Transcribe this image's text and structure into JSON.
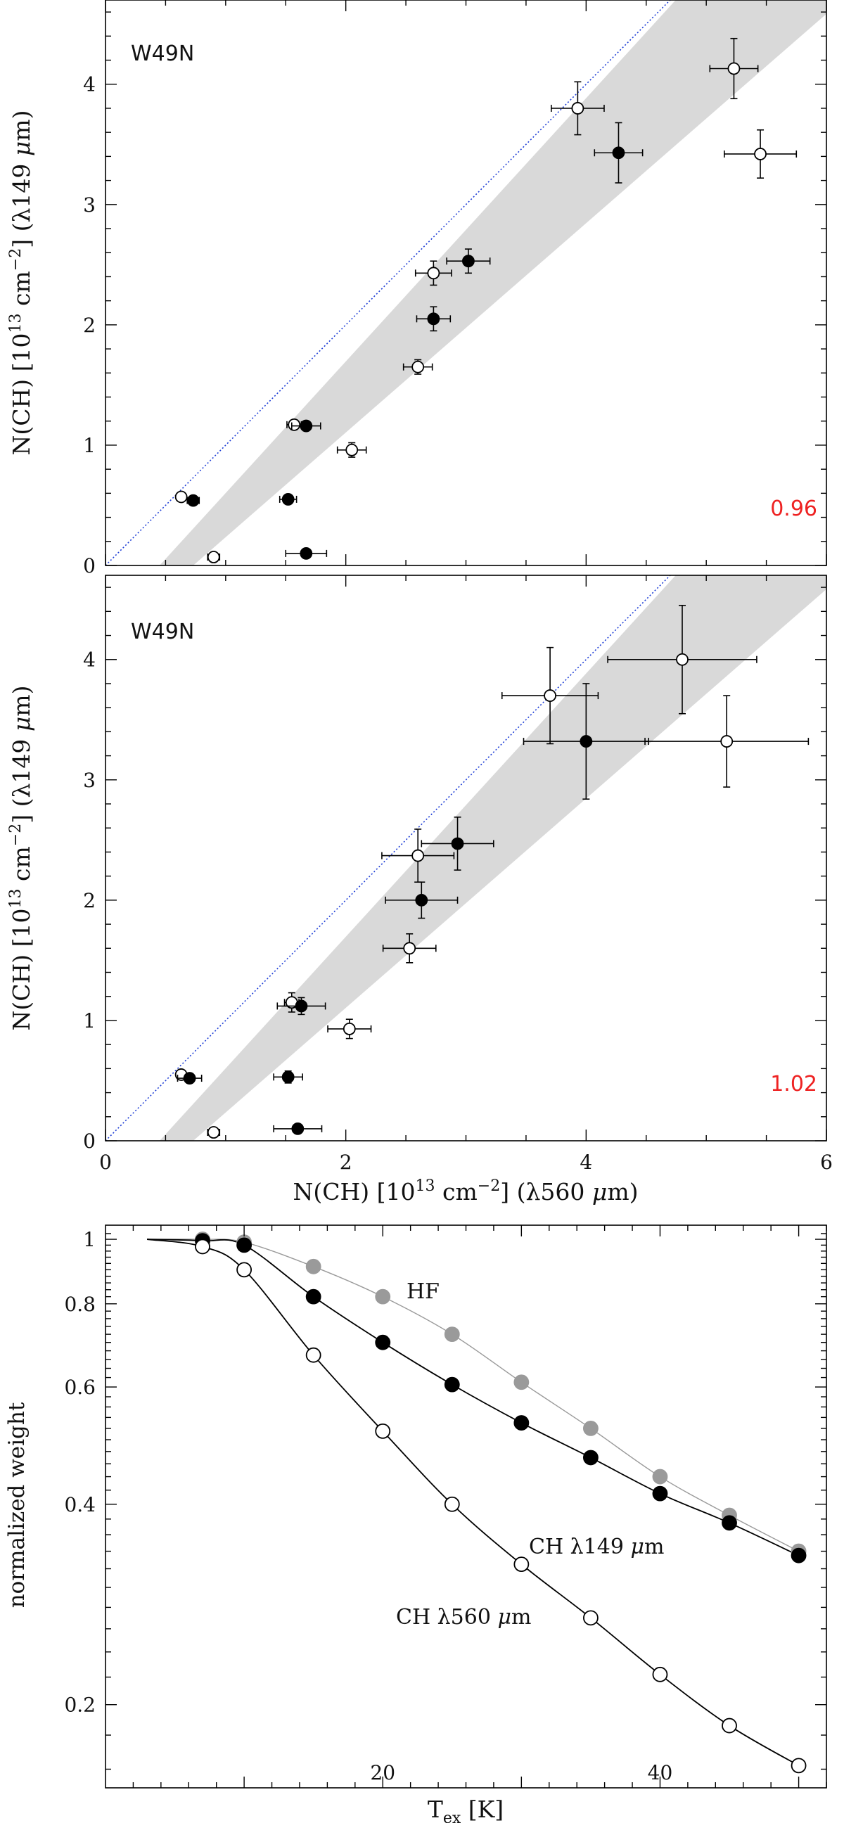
{
  "colors": {
    "band": "#d9d9d9",
    "diagonal": "#1f3fd6",
    "ratio": "#ee2222",
    "hf_series": "#9a9a9a",
    "black": "#000000"
  },
  "chart_data": [
    {
      "type": "scatter",
      "panel": "top",
      "source_label": "W49N",
      "ratio_label": "0.96",
      "xlabel": "",
      "ylabel": "N(CH) [10^13 cm^-2] (λ149 μm)",
      "ylabel_parts": {
        "main": "N(CH) [10",
        "exp": "13",
        "unit": " cm",
        "unit_exp": "−2",
        "rest": "] (λ149 ",
        "mu": "μ",
        "end": "m)"
      },
      "xlim": [
        0,
        6
      ],
      "ylim": [
        0,
        4.7
      ],
      "yticks": [
        "0",
        "1",
        "2",
        "3",
        "4"
      ],
      "reference_line": {
        "slope": 1,
        "style": "dotted"
      },
      "band": {
        "lower_slope": 0.87,
        "upper_slope": 1.03,
        "x0": 0.45
      },
      "open_points": [
        {
          "x": 0.63,
          "y": 0.57,
          "xerr": 0.03,
          "yerr": 0.02
        },
        {
          "x": 0.9,
          "y": 0.07,
          "xerr": 0.05,
          "yerr": 0.03
        },
        {
          "x": 1.57,
          "y": 1.17,
          "xerr": 0.06,
          "yerr": 0.04
        },
        {
          "x": 2.05,
          "y": 0.96,
          "xerr": 0.12,
          "yerr": 0.06
        },
        {
          "x": 2.6,
          "y": 1.65,
          "xerr": 0.12,
          "yerr": 0.06
        },
        {
          "x": 2.73,
          "y": 2.43,
          "xerr": 0.15,
          "yerr": 0.1
        },
        {
          "x": 3.93,
          "y": 3.8,
          "xerr": 0.22,
          "yerr": 0.22
        },
        {
          "x": 5.23,
          "y": 4.13,
          "xerr": 0.2,
          "yerr": 0.25
        },
        {
          "x": 5.45,
          "y": 3.42,
          "xerr": 0.3,
          "yerr": 0.2
        }
      ],
      "filled_points": [
        {
          "x": 0.73,
          "y": 0.54,
          "xerr": 0.05,
          "yerr": 0.03
        },
        {
          "x": 1.52,
          "y": 0.55,
          "xerr": 0.07,
          "yerr": 0.03
        },
        {
          "x": 1.67,
          "y": 1.16,
          "xerr": 0.12,
          "yerr": 0.04
        },
        {
          "x": 1.67,
          "y": 0.1,
          "xerr": 0.17,
          "yerr": 0.03
        },
        {
          "x": 2.73,
          "y": 2.05,
          "xerr": 0.14,
          "yerr": 0.1
        },
        {
          "x": 3.02,
          "y": 2.53,
          "xerr": 0.18,
          "yerr": 0.1
        },
        {
          "x": 4.27,
          "y": 3.43,
          "xerr": 0.2,
          "yerr": 0.25
        }
      ]
    },
    {
      "type": "scatter",
      "panel": "middle",
      "source_label": "W49N",
      "ratio_label": "1.02",
      "xlabel": "N(CH) [10^13 cm^-2] (λ560 μm)",
      "xlabel_parts": {
        "main": "N(CH) [10",
        "exp": "13",
        "unit": " cm",
        "unit_exp": "−2",
        "rest": "] (λ560 ",
        "mu": "μ",
        "end": "m)"
      },
      "ylabel": "N(CH) [10^13 cm^-2] (λ149 μm)",
      "ylabel_parts": {
        "main": "N(CH) [10",
        "exp": "13",
        "unit": " cm",
        "unit_exp": "−2",
        "rest": "] (λ149 ",
        "mu": "μ",
        "end": "m)"
      },
      "xlim": [
        0,
        6
      ],
      "ylim": [
        0,
        4.7
      ],
      "xticks": [
        "0",
        "2",
        "4",
        "6"
      ],
      "yticks": [
        "0",
        "1",
        "2",
        "3",
        "4"
      ],
      "reference_line": {
        "slope": 1,
        "style": "dotted"
      },
      "band": {
        "lower_slope": 0.87,
        "upper_slope": 1.03,
        "x0": 0.45
      },
      "open_points": [
        {
          "x": 0.63,
          "y": 0.55,
          "xerr": 0.03,
          "yerr": 0.02
        },
        {
          "x": 0.9,
          "y": 0.07,
          "xerr": 0.05,
          "yerr": 0.03
        },
        {
          "x": 1.55,
          "y": 1.15,
          "xerr": 0.06,
          "yerr": 0.08
        },
        {
          "x": 2.03,
          "y": 0.93,
          "xerr": 0.18,
          "yerr": 0.08
        },
        {
          "x": 2.53,
          "y": 1.6,
          "xerr": 0.22,
          "yerr": 0.12
        },
        {
          "x": 2.6,
          "y": 2.37,
          "xerr": 0.3,
          "yerr": 0.22
        },
        {
          "x": 3.7,
          "y": 3.7,
          "xerr": 0.4,
          "yerr": 0.4
        },
        {
          "x": 4.8,
          "y": 4.0,
          "xerr": 0.62,
          "yerr": 0.45
        },
        {
          "x": 5.17,
          "y": 3.32,
          "xerr": 0.68,
          "yerr": 0.38
        }
      ],
      "filled_points": [
        {
          "x": 0.7,
          "y": 0.52,
          "xerr": 0.1,
          "yerr": 0.04
        },
        {
          "x": 1.52,
          "y": 0.53,
          "xerr": 0.12,
          "yerr": 0.05
        },
        {
          "x": 1.63,
          "y": 1.12,
          "xerr": 0.2,
          "yerr": 0.07
        },
        {
          "x": 1.6,
          "y": 0.1,
          "xerr": 0.2,
          "yerr": 0.03
        },
        {
          "x": 2.63,
          "y": 2.0,
          "xerr": 0.3,
          "yerr": 0.15
        },
        {
          "x": 2.93,
          "y": 2.47,
          "xerr": 0.3,
          "yerr": 0.22
        },
        {
          "x": 4.0,
          "y": 3.32,
          "xerr": 0.52,
          "yerr": 0.48
        }
      ]
    },
    {
      "type": "line",
      "panel": "bottom",
      "xlabel": "Tex [K]",
      "xlabel_parts": {
        "main": "T",
        "sub": "ex",
        "rest": " [K]"
      },
      "ylabel": "normalized weight",
      "xlim": [
        0,
        52
      ],
      "ylim": [
        0.15,
        1.05
      ],
      "yscale": "log",
      "xticks": [
        20,
        40
      ],
      "yticks": [
        "0.2",
        "0.4",
        "0.6",
        "0.8",
        "1"
      ],
      "yticks_values": [
        0.2,
        0.4,
        0.6,
        0.8,
        1.0
      ],
      "series": [
        {
          "name": "HF",
          "label": "HF",
          "marker": "filled-grey",
          "x": [
            7,
            10,
            15,
            20,
            25,
            30,
            35,
            40,
            45,
            50
          ],
          "values": [
            1.0,
            0.99,
            0.91,
            0.82,
            0.72,
            0.61,
            0.52,
            0.44,
            0.385,
            0.34
          ],
          "curve_start": [
            3,
            1.0
          ]
        },
        {
          "name": "CH λ149 μm",
          "label_parts": {
            "main": "CH λ149 ",
            "mu": "μ",
            "end": "m"
          },
          "marker": "filled-black",
          "x": [
            7,
            10,
            15,
            20,
            25,
            30,
            35,
            40,
            45,
            50
          ],
          "values": [
            0.995,
            0.98,
            0.82,
            0.7,
            0.605,
            0.53,
            0.47,
            0.415,
            0.375,
            0.335
          ],
          "curve_start": [
            3,
            1.0
          ]
        },
        {
          "name": "CH λ560 μm",
          "label_parts": {
            "main": "CH λ560 ",
            "mu": "μ",
            "end": "m"
          },
          "marker": "open",
          "x": [
            7,
            10,
            15,
            20,
            25,
            30,
            35,
            40,
            45,
            50
          ],
          "values": [
            0.975,
            0.9,
            0.67,
            0.515,
            0.4,
            0.325,
            0.27,
            0.222,
            0.186,
            0.162
          ],
          "curve_start": [
            3,
            1.0
          ]
        }
      ]
    }
  ]
}
